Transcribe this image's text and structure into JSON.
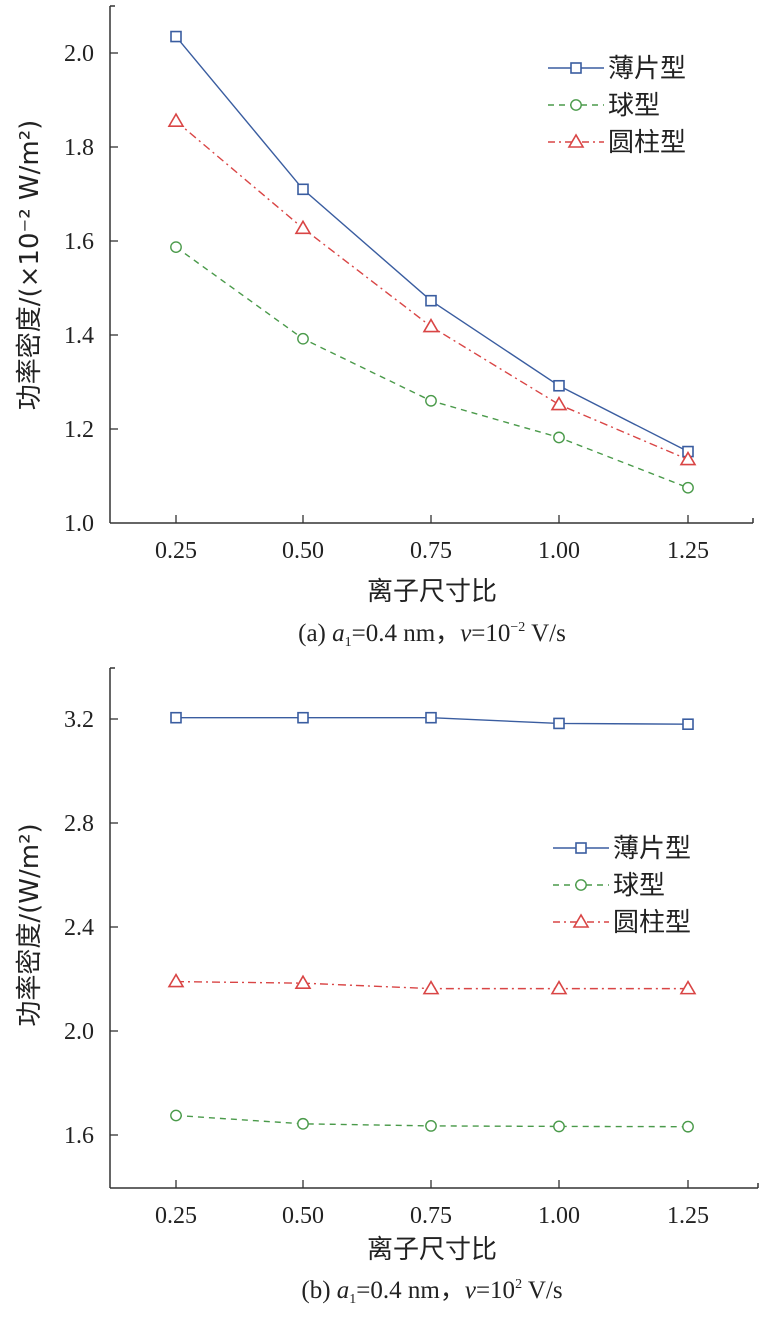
{
  "chart_data": [
    {
      "type": "line",
      "panel": "a",
      "xlabel": "离子尺寸比",
      "ylabel": "功率密度/(×10⁻² W/m²)",
      "caption": {
        "prefix": "(a) ",
        "a": "a",
        "sub": "1",
        "mid": "=0.4 nm，",
        "v": "v",
        "eq": "=10",
        "sup": "−2",
        "suffix": " V/s"
      },
      "x": [
        0.25,
        0.5,
        0.75,
        1.0,
        1.25
      ],
      "x_tick_labels": [
        "0.25",
        "0.50",
        "0.75",
        "1.00",
        "1.25"
      ],
      "xlim": [
        0.12,
        1.38
      ],
      "y_ticks": [
        1.0,
        1.2,
        1.4,
        1.6,
        1.8,
        2.0
      ],
      "y_tick_labels": [
        "1.0",
        "1.2",
        "1.4",
        "1.6",
        "1.8",
        "2.0"
      ],
      "ylim": [
        1.0,
        2.1
      ],
      "legend_position": "top-right",
      "series": [
        {
          "name": "薄片型",
          "values": [
            2.035,
            1.71,
            1.473,
            1.292,
            1.152
          ],
          "color": "#3a5da0",
          "marker": "square",
          "dash": "solid"
        },
        {
          "name": "球型",
          "values": [
            1.587,
            1.392,
            1.26,
            1.182,
            1.075
          ],
          "color": "#4a9a4a",
          "marker": "circle",
          "dash": "dashed"
        },
        {
          "name": "圆柱型",
          "values": [
            1.855,
            1.627,
            1.418,
            1.252,
            1.135
          ],
          "color": "#d94545",
          "marker": "triangle",
          "dash": "dashdot"
        }
      ]
    },
    {
      "type": "line",
      "panel": "b",
      "xlabel": "离子尺寸比",
      "ylabel": "功率密度/(W/m²)",
      "caption": {
        "prefix": "(b) ",
        "a": "a",
        "sub": "1",
        "mid": "=0.4 nm，",
        "v": "v",
        "eq": "=10",
        "sup": "2",
        "suffix": " V/s"
      },
      "x": [
        0.25,
        0.5,
        0.75,
        1.0,
        1.25
      ],
      "x_tick_labels": [
        "0.25",
        "0.50",
        "0.75",
        "1.00",
        "1.25"
      ],
      "xlim": [
        0.12,
        1.38
      ],
      "y_ticks": [
        1.6,
        2.0,
        2.4,
        2.8,
        3.2
      ],
      "y_tick_labels": [
        "1.6",
        "2.0",
        "2.4",
        "2.8",
        "3.2"
      ],
      "ylim": [
        1.4,
        3.4
      ],
      "legend_position": "center-right",
      "series": [
        {
          "name": "薄片型",
          "values": [
            3.205,
            3.205,
            3.205,
            3.183,
            3.18
          ],
          "color": "#3a5da0",
          "marker": "square",
          "dash": "solid"
        },
        {
          "name": "球型",
          "values": [
            1.675,
            1.643,
            1.635,
            1.633,
            1.632
          ],
          "color": "#4a9a4a",
          "marker": "circle",
          "dash": "dashed"
        },
        {
          "name": "圆柱型",
          "values": [
            2.19,
            2.184,
            2.163,
            2.163,
            2.163
          ],
          "color": "#d94545",
          "marker": "triangle",
          "dash": "dashdot"
        }
      ]
    }
  ]
}
